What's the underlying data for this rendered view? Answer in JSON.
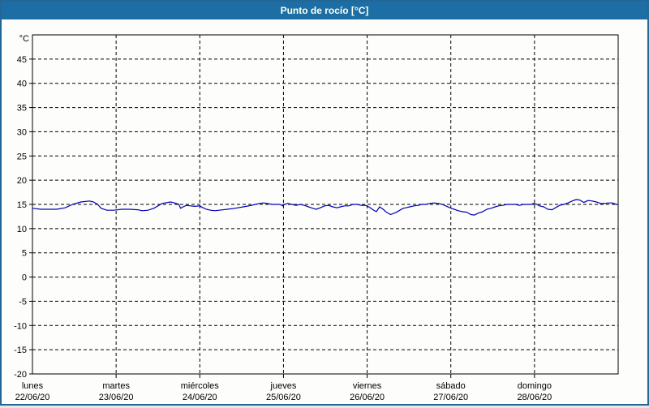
{
  "window": {
    "title": "Punto de rocío [°C]"
  },
  "colors": {
    "header_bg": "#1c6ea4",
    "header_text": "#fffff4",
    "window_border": "#226795",
    "plot_border": "#000000",
    "grid": "#000000",
    "line": "#0000b4",
    "background": "#fdfdfb"
  },
  "chart_data": {
    "type": "line",
    "title": "Punto de rocío [°C]",
    "unit_label": "°C",
    "ylim": [
      -20,
      50
    ],
    "yticks": [
      45,
      40,
      35,
      30,
      25,
      20,
      15,
      10,
      5,
      0,
      -5,
      -10,
      -15,
      -20
    ],
    "grid": "dashed",
    "legend": "none",
    "x_axis_days": [
      {
        "name": "lunes",
        "date": "22/06/20"
      },
      {
        "name": "martes",
        "date": "23/06/20"
      },
      {
        "name": "miércoles",
        "date": "24/06/20"
      },
      {
        "name": "jueves",
        "date": "25/06/20"
      },
      {
        "name": "viernes",
        "date": "26/06/20"
      },
      {
        "name": "sábado",
        "date": "27/06/20"
      },
      {
        "name": "domingo",
        "date": "28/06/20"
      }
    ],
    "series": [
      {
        "name": "Punto de rocío",
        "color": "#0000b4",
        "x_days": [
          0.0,
          0.1,
          0.19,
          0.29,
          0.39,
          0.48,
          0.58,
          0.68,
          0.73,
          0.78,
          0.82,
          0.89,
          0.97,
          1.07,
          1.16,
          1.26,
          1.31,
          1.38,
          1.45,
          1.55,
          1.65,
          1.7,
          1.75,
          1.77,
          1.8,
          1.84,
          1.89,
          1.94,
          2.0,
          2.04,
          2.08,
          2.13,
          2.18,
          2.23,
          2.33,
          2.42,
          2.52,
          2.62,
          2.71,
          2.76,
          2.81,
          2.86,
          2.91,
          2.96,
          2.99,
          3.01,
          3.05,
          3.1,
          3.15,
          3.2,
          3.25,
          3.3,
          3.35,
          3.39,
          3.44,
          3.49,
          3.54,
          3.59,
          3.64,
          3.68,
          3.73,
          3.78,
          3.83,
          3.88,
          3.93,
          3.98,
          4.02,
          4.07,
          4.11,
          4.15,
          4.19,
          4.23,
          4.28,
          4.34,
          4.38,
          4.43,
          4.46,
          4.51,
          4.56,
          4.61,
          4.65,
          4.7,
          4.75,
          4.8,
          4.85,
          4.9,
          4.94,
          4.99,
          5.04,
          5.09,
          5.14,
          5.19,
          5.24,
          5.28,
          5.33,
          5.38,
          5.43,
          5.48,
          5.53,
          5.57,
          5.62,
          5.67,
          5.72,
          5.77,
          5.82,
          5.87,
          5.91,
          5.96,
          5.99,
          6.03,
          6.06,
          6.11,
          6.16,
          6.21,
          6.25,
          6.3,
          6.35,
          6.4,
          6.45,
          6.5,
          6.54,
          6.59,
          6.64,
          6.69,
          6.74,
          6.79,
          6.84,
          6.88,
          6.93,
          6.98,
          7.0
        ],
        "values": [
          14.2,
          14.0,
          14.0,
          14.0,
          14.3,
          15.0,
          15.5,
          15.7,
          15.5,
          15.0,
          14.2,
          13.8,
          13.8,
          14.0,
          14.0,
          13.9,
          13.7,
          13.8,
          14.2,
          15.2,
          15.5,
          15.3,
          15.0,
          14.2,
          14.5,
          14.8,
          14.7,
          14.6,
          14.7,
          14.3,
          14.0,
          13.8,
          13.7,
          13.8,
          14.0,
          14.2,
          14.5,
          14.8,
          15.2,
          15.3,
          15.2,
          15.0,
          15.0,
          15.0,
          14.7,
          15.0,
          15.2,
          15.0,
          14.8,
          15.0,
          14.8,
          14.5,
          14.2,
          14.0,
          14.3,
          14.7,
          14.8,
          14.5,
          14.3,
          14.5,
          14.7,
          14.7,
          15.0,
          15.0,
          14.8,
          14.8,
          14.5,
          13.9,
          13.5,
          14.5,
          14.0,
          13.4,
          12.9,
          13.3,
          13.7,
          14.2,
          14.3,
          14.5,
          14.7,
          14.8,
          15.0,
          15.0,
          15.2,
          15.3,
          15.2,
          15.0,
          14.7,
          14.3,
          14.0,
          13.7,
          13.5,
          13.4,
          12.9,
          12.8,
          13.2,
          13.5,
          14.0,
          14.2,
          14.5,
          14.7,
          14.8,
          15.0,
          15.0,
          15.0,
          14.8,
          15.0,
          15.0,
          15.0,
          15.2,
          15.0,
          14.7,
          14.5,
          14.0,
          13.9,
          14.3,
          14.8,
          15.0,
          15.3,
          15.7,
          16.0,
          15.9,
          15.4,
          15.8,
          15.7,
          15.5,
          15.2,
          15.2,
          15.3,
          15.3,
          15.0,
          15.0
        ]
      }
    ]
  }
}
